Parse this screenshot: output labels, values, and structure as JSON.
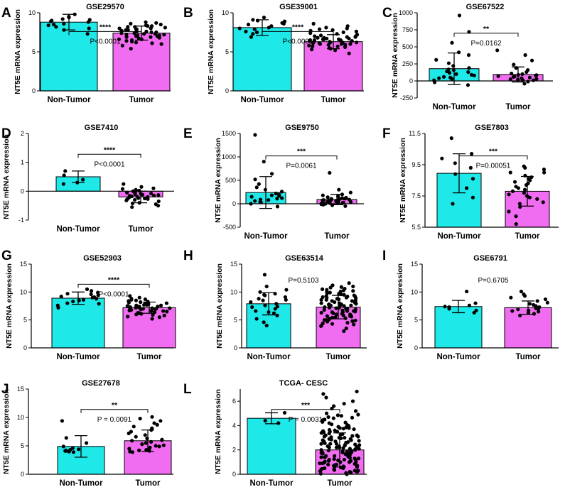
{
  "figure": {
    "colors": {
      "non_tumor": "#1fe8e8",
      "tumor": "#f06cf0",
      "axis": "#000000",
      "dot": "#000000"
    }
  },
  "chart_data": [
    {
      "panel": "A",
      "title": "GSE29570",
      "type": "bar",
      "ylabel": "NT5E mRNA expression",
      "ylim": [
        0,
        10
      ],
      "yticks": [
        0,
        5,
        10
      ],
      "categories": [
        "Non-Tumor",
        "Tumor"
      ],
      "values": [
        8.8,
        7.4
      ],
      "errors": [
        1.0,
        0.9
      ],
      "points": [
        [
          7.3,
          8.0,
          8.4,
          8.6,
          8.8,
          9.0,
          9.2,
          9.4,
          9.8,
          8.2,
          8.9,
          9.1,
          7.8,
          8.5,
          9.5
        ],
        [
          5.4,
          5.8,
          6.1,
          6.3,
          6.5,
          6.6,
          6.8,
          6.9,
          7.0,
          7.1,
          7.2,
          7.3,
          7.4,
          7.5,
          7.6,
          7.7,
          7.8,
          7.9,
          8.0,
          8.1,
          8.2,
          8.3,
          8.4,
          8.5,
          8.6,
          6.2,
          6.7,
          7.0,
          7.3,
          7.6,
          7.9,
          8.2,
          6.4,
          6.9,
          7.4,
          7.8,
          8.3,
          8.7,
          6.0,
          7.1,
          7.5,
          8.0,
          8.8,
          6.6,
          7.2
        ]
      ],
      "significance": "****",
      "pvalue": "P<0.0001"
    },
    {
      "panel": "B",
      "title": "GSE39001",
      "type": "bar",
      "ylabel": "NT5E mRNA expression",
      "ylim": [
        0,
        10
      ],
      "yticks": [
        0,
        5,
        10
      ],
      "categories": [
        "Non-Tumor",
        "Tumor"
      ],
      "values": [
        8.1,
        6.3
      ],
      "errors": [
        1.0,
        0.9
      ],
      "points": [
        [
          6.9,
          7.3,
          7.6,
          7.9,
          8.1,
          8.3,
          8.5,
          8.7,
          8.9,
          9.1,
          9.4,
          7.5,
          8.0,
          8.6,
          9.0
        ],
        [
          4.8,
          5.2,
          5.5,
          5.7,
          5.9,
          6.0,
          6.1,
          6.2,
          6.3,
          6.4,
          6.5,
          6.6,
          6.7,
          6.8,
          6.9,
          7.0,
          7.2,
          7.4,
          7.6,
          7.8,
          8.0,
          8.3,
          8.6,
          5.4,
          5.8,
          6.0,
          6.2,
          6.4,
          6.6,
          6.8,
          7.1,
          5.6,
          6.1,
          6.5,
          6.9,
          7.3,
          7.7,
          8.1,
          5.3,
          6.3,
          6.7,
          7.0,
          7.5,
          5.9,
          6.2,
          6.6,
          6.4,
          6.0,
          5.7,
          7.9,
          6.8,
          6.5
        ]
      ],
      "significance": "****",
      "pvalue": "P<0.0001"
    },
    {
      "panel": "C",
      "title": "GSE67522",
      "type": "bar",
      "ylabel": "NT5E mRNA expression",
      "ylim": [
        -250,
        1000
      ],
      "yticks": [
        -250,
        0,
        250,
        500,
        750,
        1000
      ],
      "categories": [
        "Non-Tumor",
        "Tumor"
      ],
      "values": [
        180,
        95
      ],
      "errors": [
        230,
        110
      ],
      "points": [
        [
          -60,
          -20,
          10,
          40,
          60,
          80,
          100,
          120,
          140,
          160,
          190,
          220,
          260,
          310,
          380,
          420,
          560,
          720,
          960,
          50,
          90,
          130,
          170,
          30
        ],
        [
          -40,
          -10,
          10,
          20,
          30,
          40,
          50,
          60,
          70,
          80,
          90,
          100,
          110,
          130,
          160,
          190,
          240,
          300,
          380,
          450,
          25,
          65,
          85,
          15
        ]
      ],
      "significance": "**",
      "pvalue": "P=0.0162"
    },
    {
      "panel": "D",
      "title": "GSE7410",
      "type": "bar",
      "ylabel": "NT5E mRNA expression",
      "ylim": [
        -1,
        2
      ],
      "yticks": [
        -1,
        0,
        1,
        2
      ],
      "categories": [
        "Non-Tumor",
        "Tumor"
      ],
      "values": [
        0.5,
        -0.2
      ],
      "errors": [
        0.2,
        0.2
      ],
      "points": [
        [
          0.25,
          0.4,
          0.55,
          0.7,
          0.3
        ],
        [
          -0.55,
          -0.5,
          -0.45,
          -0.4,
          -0.35,
          -0.3,
          -0.28,
          -0.25,
          -0.22,
          -0.2,
          -0.18,
          -0.15,
          -0.12,
          -0.1,
          -0.08,
          -0.05,
          0.0,
          0.05,
          0.1,
          0.15,
          0.25,
          -0.32,
          -0.24,
          -0.16,
          -0.06,
          0.02,
          -0.42,
          -0.13,
          0.08,
          -0.27,
          -0.19,
          -0.09
        ]
      ],
      "significance": "****",
      "pvalue": "P<0.0001"
    },
    {
      "panel": "E",
      "title": "GSE9750",
      "type": "bar",
      "ylabel": "NT5E mRNA expression",
      "ylim": [
        -500,
        1500
      ],
      "yticks": [
        -500,
        0,
        500,
        1000,
        1500
      ],
      "categories": [
        "Non-Tumor",
        "Tumor"
      ],
      "values": [
        240,
        90
      ],
      "errors": [
        340,
        110
      ],
      "points": [
        [
          -60,
          0,
          30,
          60,
          90,
          120,
          150,
          180,
          220,
          260,
          300,
          350,
          420,
          520,
          640,
          900,
          1470,
          80,
          110,
          170,
          40,
          200
        ],
        [
          -50,
          -30,
          -10,
          0,
          10,
          20,
          30,
          40,
          50,
          60,
          70,
          80,
          90,
          100,
          110,
          120,
          140,
          160,
          180,
          200,
          240,
          300,
          660,
          15,
          35,
          55,
          75,
          95,
          130,
          25,
          45,
          65,
          85,
          105,
          5,
          -20
        ]
      ],
      "significance": "***",
      "pvalue": "P=0.0061"
    },
    {
      "panel": "F",
      "title": "GSE7803",
      "type": "bar",
      "ylabel": "NT5E mRNA expression",
      "ylim": [
        5.5,
        11.5
      ],
      "yticks": [
        5.5,
        7.5,
        9.5,
        11.5
      ],
      "categories": [
        "Non-Tumor",
        "Tumor"
      ],
      "values": [
        8.95,
        7.8
      ],
      "errors": [
        1.25,
        0.95
      ],
      "points": [
        [
          7.0,
          7.4,
          8.0,
          8.6,
          8.9,
          9.3,
          9.6,
          9.9,
          10.2,
          11.2
        ],
        [
          5.7,
          6.2,
          6.5,
          6.8,
          7.0,
          7.1,
          7.3,
          7.4,
          7.5,
          7.6,
          7.7,
          7.8,
          7.9,
          8.0,
          8.1,
          8.2,
          8.3,
          8.4,
          8.6,
          8.7,
          8.8,
          9.0,
          9.2,
          9.3,
          9.4,
          9.0,
          8.5
        ]
      ],
      "significance": "***",
      "pvalue": "P=0.00051"
    },
    {
      "panel": "G",
      "title": "GSE52903",
      "type": "bar",
      "ylabel": "NT5E mRNA expression",
      "ylim": [
        0,
        15
      ],
      "yticks": [
        0,
        5,
        10,
        15
      ],
      "categories": [
        "Non-Tumor",
        "Tumor"
      ],
      "values": [
        8.9,
        7.2
      ],
      "errors": [
        1.1,
        1.0
      ],
      "points": [
        [
          7.2,
          7.6,
          8.0,
          8.3,
          8.6,
          8.8,
          9.0,
          9.2,
          9.4,
          9.6,
          9.9,
          10.2,
          10.5,
          8.5,
          9.1,
          7.9,
          9.7
        ],
        [
          5.2,
          5.6,
          5.9,
          6.1,
          6.3,
          6.5,
          6.6,
          6.8,
          6.9,
          7.0,
          7.1,
          7.2,
          7.3,
          7.4,
          7.5,
          7.6,
          7.7,
          7.8,
          7.9,
          8.0,
          8.1,
          8.2,
          8.4,
          8.6,
          8.8,
          9.0,
          9.3,
          6.2,
          6.7,
          7.0,
          7.3,
          7.6,
          7.9,
          8.3,
          5.8,
          6.4,
          6.9,
          7.4,
          7.8,
          8.5,
          5.5,
          6.0,
          7.1,
          7.7,
          8.7,
          6.6,
          7.2
        ]
      ],
      "significance": "****",
      "pvalue": "P<0.0001"
    },
    {
      "panel": "H",
      "title": "GSE63514",
      "type": "bar",
      "ylabel": "NT5E mRNA expression",
      "ylim": [
        0,
        15
      ],
      "yticks": [
        0,
        5,
        10,
        15
      ],
      "categories": [
        "Non-Tumor",
        "Tumor"
      ],
      "values": [
        7.9,
        7.3
      ],
      "errors": [
        2.0,
        2.1
      ],
      "points": [
        [
          4.0,
          4.6,
          5.2,
          5.8,
          6.2,
          6.6,
          7.0,
          7.3,
          7.6,
          7.9,
          8.2,
          8.5,
          8.8,
          9.1,
          9.4,
          9.7,
          10.0,
          10.4,
          11.0,
          13.1,
          6.4,
          8.6,
          7.4,
          9.5
        ],
        [
          3.0,
          3.5,
          3.9,
          4.2,
          4.5,
          4.8,
          5.0,
          5.2,
          5.4,
          5.6,
          5.8,
          6.0,
          6.2,
          6.4,
          6.6,
          6.8,
          7.0,
          7.2,
          7.4,
          7.6,
          7.8,
          8.0,
          8.2,
          8.4,
          8.6,
          8.8,
          9.0,
          9.2,
          9.4,
          9.6,
          9.8,
          10.0,
          10.2,
          10.4,
          10.6,
          10.9,
          11.2,
          11.6,
          4.0,
          4.4,
          4.9,
          5.3,
          5.7,
          6.1,
          6.5,
          6.9,
          7.3,
          7.7,
          8.1,
          8.5,
          8.9,
          9.3,
          9.7,
          10.1,
          10.5,
          4.7,
          5.5,
          6.3,
          7.1,
          7.9,
          8.7,
          9.5,
          10.3,
          11.0,
          5.1,
          5.9,
          6.7,
          7.5,
          8.3,
          9.1,
          9.9,
          6.0,
          7.0,
          8.0,
          9.0,
          6.6,
          7.6,
          8.6,
          5.0,
          6.4,
          7.8,
          9.2,
          10.8,
          4.3,
          5.7,
          7.2,
          8.4
        ]
      ],
      "significance": "",
      "pvalue": "P=0.5103"
    },
    {
      "panel": "I",
      "title": "GSE6791",
      "type": "bar",
      "ylabel": "NT5E mRNA expression",
      "ylim": [
        0,
        15
      ],
      "yticks": [
        0,
        5,
        10,
        15
      ],
      "categories": [
        "Non-Tumor",
        "Tumor"
      ],
      "values": [
        7.4,
        7.2
      ],
      "errors": [
        1.1,
        1.2
      ],
      "points": [
        [
          6.3,
          6.7,
          7.0,
          7.3,
          7.6,
          8.0,
          10.1,
          7.4
        ],
        [
          5.8,
          6.1,
          6.3,
          6.5,
          6.7,
          6.9,
          7.0,
          7.1,
          7.3,
          7.5,
          7.7,
          7.9,
          8.1,
          8.4,
          8.7,
          9.0,
          9.3,
          9.6,
          10.1,
          6.6
        ]
      ],
      "significance": "",
      "pvalue": "P=0.6705"
    },
    {
      "panel": "J",
      "title": "GSE27678",
      "type": "bar",
      "ylabel": "NT5E mRNA expression",
      "ylim": [
        0,
        15
      ],
      "yticks": [
        0,
        5,
        10,
        15
      ],
      "categories": [
        "Non-Tumor",
        "Tumor"
      ],
      "values": [
        4.9,
        5.9
      ],
      "errors": [
        1.9,
        1.9
      ],
      "points": [
        [
          3.9,
          4.0,
          4.0,
          4.1,
          4.1,
          4.2,
          4.3,
          4.4,
          4.6,
          4.9,
          5.5,
          6.4,
          9.4
        ],
        [
          3.9,
          4.0,
          4.1,
          4.2,
          4.3,
          4.5,
          4.7,
          4.9,
          5.1,
          5.3,
          5.5,
          5.7,
          5.9,
          6.1,
          6.3,
          6.6,
          6.9,
          7.2,
          7.5,
          7.8,
          8.1,
          8.4,
          8.7,
          9.0,
          9.4,
          9.8,
          10.1,
          4.4,
          5.0,
          6.0
        ]
      ],
      "significance": "**",
      "pvalue": "P = 0.0091"
    },
    {
      "panel": "L",
      "title": "TCGA- CESC",
      "type": "bar",
      "ylabel": "NT5E mRNA expression",
      "ylim": [
        0,
        7
      ],
      "yticks": [
        0,
        2,
        4,
        6
      ],
      "categories": [
        "Non-Tumor",
        "Tumor"
      ],
      "values": [
        4.6,
        2.0
      ],
      "errors": [
        0.45,
        1.4
      ],
      "points": [
        [
          4.2,
          4.4,
          5.05
        ],
        [
          0.0,
          0.1,
          0.2,
          0.3,
          0.4,
          0.5,
          0.6,
          0.7,
          0.8,
          0.9,
          1.0,
          1.1,
          1.2,
          1.3,
          1.4,
          1.5,
          1.6,
          1.7,
          1.8,
          1.9,
          2.0,
          2.1,
          2.2,
          2.3,
          2.4,
          2.5,
          2.6,
          2.7,
          2.8,
          2.9,
          3.0,
          3.1,
          3.2,
          3.3,
          3.4,
          3.5,
          3.6,
          3.7,
          3.8,
          3.9,
          4.0,
          4.1,
          4.2,
          4.3,
          4.4,
          4.5,
          4.6,
          4.7,
          4.8,
          4.9,
          5.0,
          5.2,
          5.4,
          5.6,
          5.8,
          6.0,
          6.3,
          6.6,
          6.8,
          0.05,
          0.15,
          0.25,
          0.35,
          0.45,
          0.55,
          0.65,
          0.75,
          0.85,
          0.95,
          1.05,
          1.15,
          1.25,
          1.35,
          1.45,
          1.55,
          1.65,
          1.75,
          1.85,
          1.95,
          2.05,
          2.15,
          2.25,
          2.35,
          2.45,
          2.55,
          2.65,
          2.75,
          2.85,
          2.95,
          3.05,
          3.15,
          3.25,
          3.35,
          3.45,
          3.55,
          3.65,
          3.75,
          3.85,
          3.95,
          4.05,
          4.25,
          4.45,
          4.65,
          4.85,
          0.2,
          0.6,
          1.0,
          1.4,
          1.8,
          2.2,
          2.6,
          3.0,
          3.4,
          3.8,
          0.3,
          0.7,
          1.1,
          1.5,
          1.9,
          2.3,
          2.7,
          3.1,
          3.5,
          0.4,
          0.8,
          1.2,
          1.6,
          2.0,
          2.4,
          2.8,
          3.2,
          0.5,
          0.9,
          1.3,
          1.7,
          2.1,
          2.5,
          2.9,
          1.0,
          1.5,
          2.0,
          2.5,
          1.2,
          1.8,
          2.2
        ]
      ],
      "significance": "***",
      "pvalue": "P = 0.0031"
    }
  ]
}
